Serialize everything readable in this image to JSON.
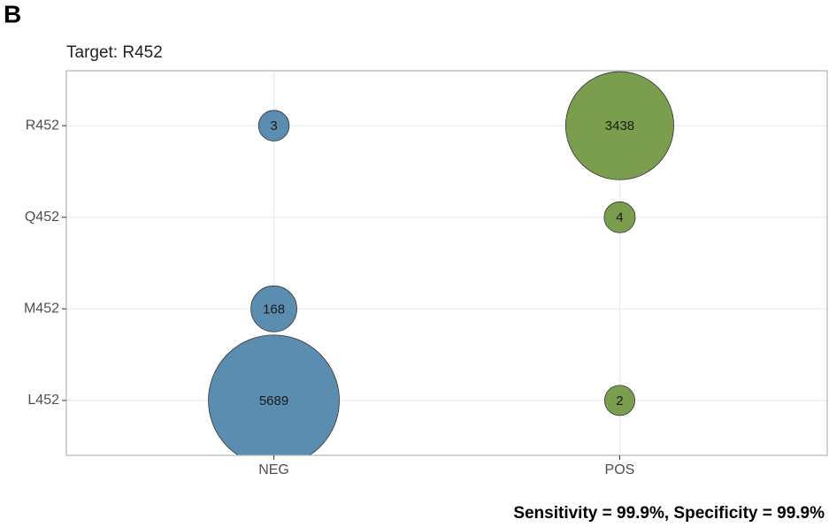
{
  "panel_label": "B",
  "chart_data": {
    "type": "bubble",
    "title": "Target: R452",
    "categories": [
      "NEG",
      "POS"
    ],
    "y_categories": [
      "L452",
      "M452",
      "Q452",
      "R452"
    ],
    "series": [
      {
        "name": "NEG",
        "color": "#5b8db0",
        "y": [
          "R452",
          "M452",
          "L452"
        ],
        "values": [
          3,
          168,
          5689
        ]
      },
      {
        "name": "POS",
        "color": "#7a9e4e",
        "y": [
          "R452",
          "Q452",
          "L452"
        ],
        "values": [
          3438,
          4,
          2
        ]
      }
    ],
    "grid": true
  },
  "footer": "Sensitivity = 99.9%, Specificity = 99.9%"
}
